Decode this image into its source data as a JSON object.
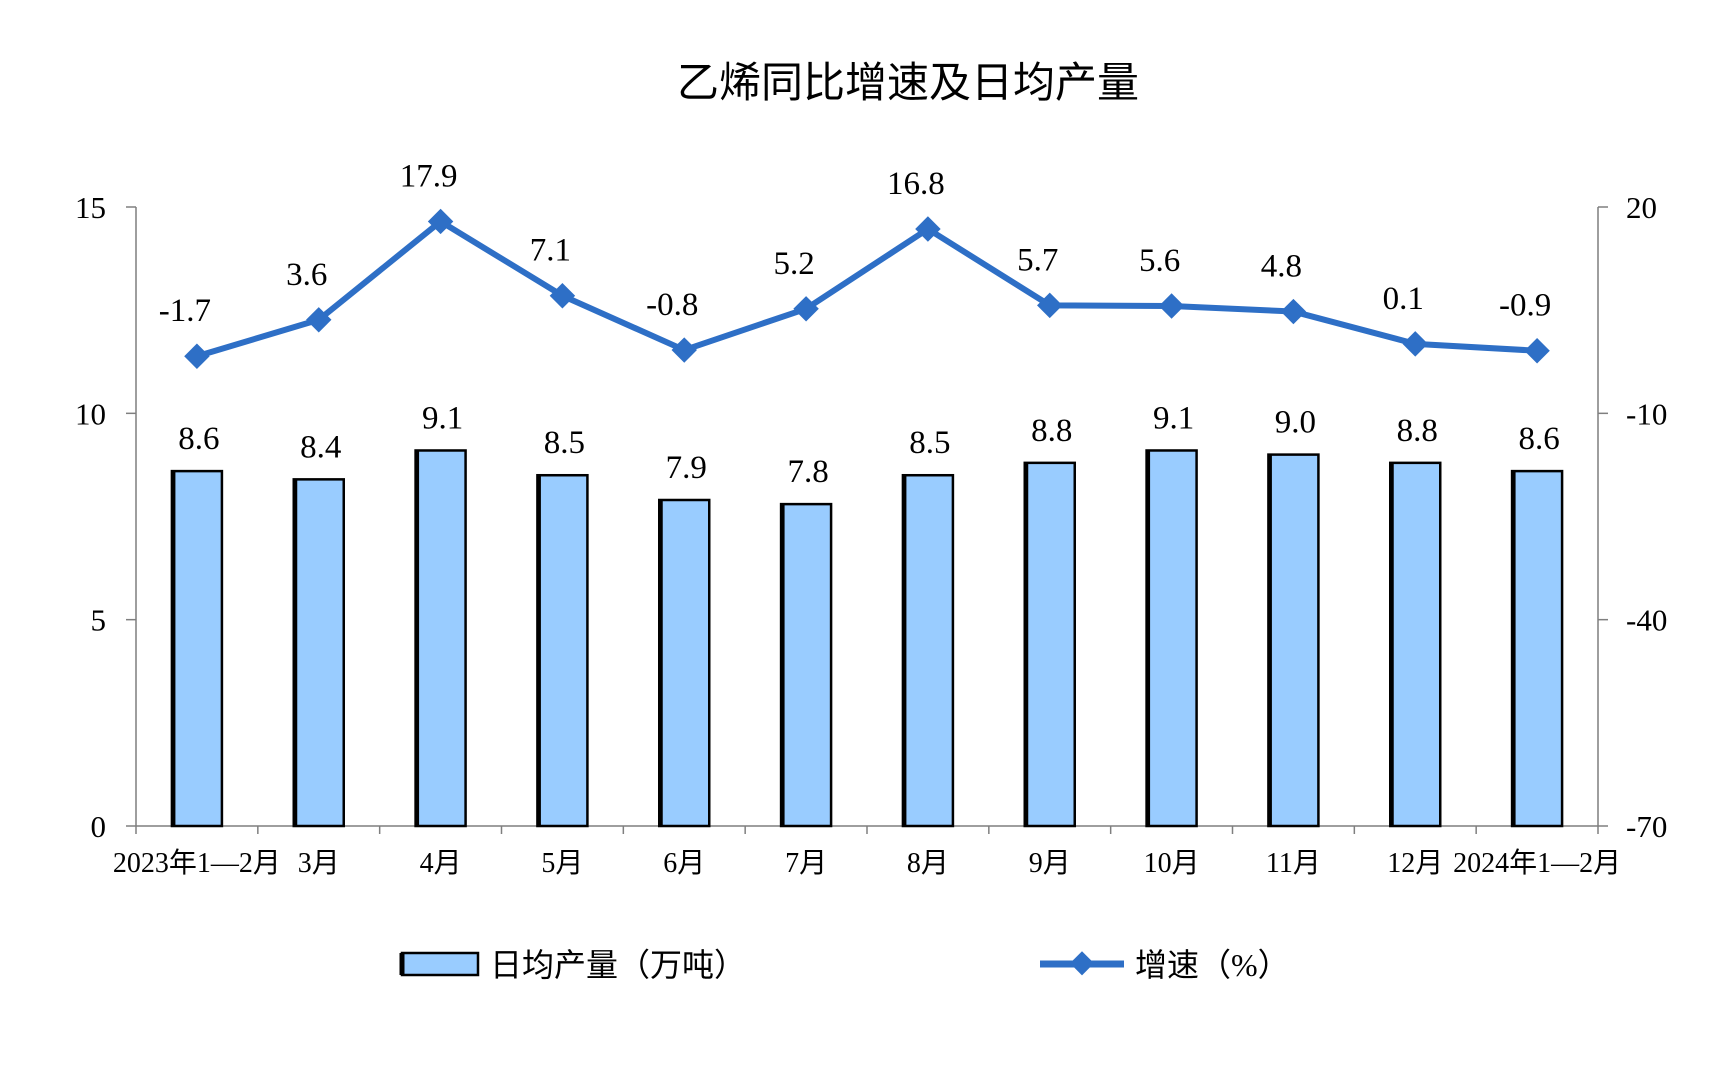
{
  "chart_data": {
    "type": "bar+line",
    "title": "乙烯同比增速及日均产量",
    "categories": [
      "2023年1—2月",
      "3月",
      "4月",
      "5月",
      "6月",
      "7月",
      "8月",
      "9月",
      "10月",
      "11月",
      "12月",
      "2024年1—2月"
    ],
    "series": [
      {
        "name": "日均产量（万吨）",
        "type": "bar",
        "axis": "left",
        "values": [
          8.6,
          8.4,
          9.1,
          8.5,
          7.9,
          7.8,
          8.5,
          8.8,
          9.1,
          9.0,
          8.8,
          8.6
        ],
        "labels": [
          "8.6",
          "8.4",
          "9.1",
          "8.5",
          "7.9",
          "7.8",
          "8.5",
          "8.8",
          "9.1",
          "9.0",
          "8.8",
          "8.6"
        ],
        "color": "#99ccff"
      },
      {
        "name": "增速（%）",
        "type": "line",
        "axis": "right",
        "values": [
          -1.7,
          3.6,
          17.9,
          7.1,
          -0.8,
          5.2,
          16.8,
          5.7,
          5.6,
          4.8,
          0.1,
          -0.9
        ],
        "labels": [
          "-1.7",
          "3.6",
          "17.9",
          "7.1",
          "-0.8",
          "5.2",
          "16.8",
          "5.7",
          "5.6",
          "4.8",
          "0.1",
          "-0.9"
        ],
        "color": "#2e6fc6"
      }
    ],
    "y_left": {
      "min": 0,
      "max": 15,
      "ticks": [
        "0",
        "5",
        "10",
        "15"
      ]
    },
    "y_right": {
      "min": -70,
      "max": 20,
      "ticks": [
        "-70",
        "-40",
        "-10",
        "20"
      ]
    },
    "grid": false,
    "legend": "bottom"
  }
}
